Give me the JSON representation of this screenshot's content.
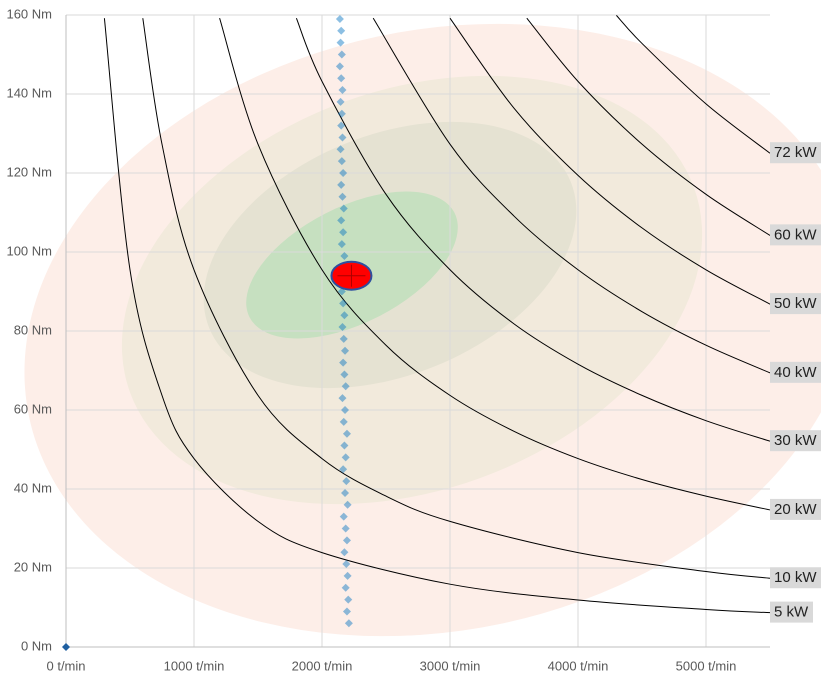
{
  "chart_data": {
    "type": "scatter",
    "xlim": [
      0,
      5500
    ],
    "ylim": [
      0,
      160
    ],
    "xticks": [
      {
        "value": 0,
        "label": "0 t/min"
      },
      {
        "value": 1000,
        "label": "1000 t/min"
      },
      {
        "value": 2000,
        "label": "2000 t/min"
      },
      {
        "value": 3000,
        "label": "3000 t/min"
      },
      {
        "value": 4000,
        "label": "4000 t/min"
      },
      {
        "value": 5000,
        "label": "5000 t/min"
      }
    ],
    "yticks": [
      {
        "value": 0,
        "label": "0 Nm"
      },
      {
        "value": 20,
        "label": "20 Nm"
      },
      {
        "value": 40,
        "label": "40 Nm"
      },
      {
        "value": 60,
        "label": "60 Nm"
      },
      {
        "value": 80,
        "label": "80 Nm"
      },
      {
        "value": 100,
        "label": "100 Nm"
      },
      {
        "value": 120,
        "label": "120 Nm"
      },
      {
        "value": 140,
        "label": "140 Nm"
      },
      {
        "value": 160,
        "label": "160 Nm"
      }
    ],
    "grid": true,
    "series": [
      {
        "name": "5 kW",
        "kind": "curve",
        "color": "#000000",
        "x": [
          300,
          500,
          750,
          1000,
          1500,
          2000,
          3000,
          4000,
          5000,
          5500
        ],
        "values": [
          159.2,
          95.5,
          63.7,
          47.7,
          31.8,
          23.9,
          15.9,
          11.9,
          9.5,
          8.7
        ]
      },
      {
        "name": "10 kW",
        "kind": "curve",
        "color": "#000000",
        "x": [
          600,
          750,
          1000,
          1500,
          2000,
          2500,
          3000,
          4000,
          5000,
          5500
        ],
        "values": [
          159.2,
          127.3,
          95.5,
          63.7,
          47.7,
          38.2,
          31.8,
          23.9,
          19.1,
          17.4
        ]
      },
      {
        "name": "20 kW",
        "kind": "curve",
        "color": "#000000",
        "x": [
          1200,
          1500,
          2000,
          2500,
          3000,
          3500,
          4000,
          4500,
          5000,
          5500
        ],
        "values": [
          159.2,
          127.3,
          95.5,
          76.4,
          63.7,
          54.6,
          47.7,
          42.4,
          38.2,
          34.7
        ]
      },
      {
        "name": "30 kW",
        "kind": "curve",
        "color": "#000000",
        "x": [
          1800,
          2000,
          2500,
          3000,
          3500,
          4000,
          4500,
          5000,
          5500
        ],
        "values": [
          159.2,
          143.2,
          114.6,
          95.5,
          81.8,
          71.6,
          63.7,
          57.3,
          52.1
        ]
      },
      {
        "name": "40 kW",
        "kind": "curve",
        "color": "#000000",
        "x": [
          2400,
          3000,
          3500,
          4000,
          4500,
          5000,
          5500
        ],
        "values": [
          159.2,
          127.3,
          109.1,
          95.5,
          84.9,
          76.4,
          69.4
        ]
      },
      {
        "name": "50 kW",
        "kind": "curve",
        "color": "#000000",
        "x": [
          3000,
          3500,
          4000,
          4500,
          5000,
          5500
        ],
        "values": [
          159.2,
          136.4,
          119.4,
          106.1,
          95.5,
          86.8
        ]
      },
      {
        "name": "60 kW",
        "kind": "curve",
        "color": "#000000",
        "x": [
          3600,
          4000,
          4500,
          5000,
          5500
        ],
        "values": [
          159.2,
          143.2,
          127.3,
          114.6,
          104.2
        ]
      },
      {
        "name": "72 kW",
        "kind": "curve",
        "color": "#000000",
        "x": [
          4300,
          4500,
          5000,
          5500
        ],
        "values": [
          159.9,
          152.8,
          137.5,
          125.0
        ]
      },
      {
        "kind": "points",
        "color": "#0070c0",
        "x": [
          2210,
          2195,
          2205,
          2185,
          2200,
          2190,
          2175,
          2195,
          2185,
          2170,
          2200,
          2180,
          2190,
          2165,
          2185,
          2175,
          2195,
          2170,
          2180,
          2160,
          2185,
          2175,
          2165,
          2180,
          2170,
          2160,
          2175,
          2165,
          2155,
          2170,
          2160,
          2175,
          2155,
          2165,
          2150,
          2170,
          2160,
          2150,
          2165,
          2155,
          2145,
          2160,
          2150,
          2155,
          2145,
          2160,
          2150,
          2140,
          2155,
          2145,
          2150,
          2140
        ],
        "values": [
          6,
          9,
          12,
          15,
          18,
          21,
          24,
          27,
          30,
          33,
          36,
          39,
          42,
          45,
          48,
          51,
          54,
          57,
          60,
          63,
          66,
          69,
          72,
          75,
          78,
          81,
          84,
          87,
          90,
          93,
          96,
          99,
          102,
          105,
          108,
          111,
          114,
          117,
          120,
          123,
          126,
          129,
          132,
          135,
          138,
          141,
          144,
          147,
          150,
          153,
          156,
          159
        ]
      },
      {
        "kind": "operating-point",
        "color": "#ff0000",
        "x": [
          2230
        ],
        "values": [
          94
        ]
      },
      {
        "kind": "origin-point",
        "color": "#1f5fa0",
        "x": [
          0
        ],
        "values": [
          0
        ]
      }
    ]
  }
}
